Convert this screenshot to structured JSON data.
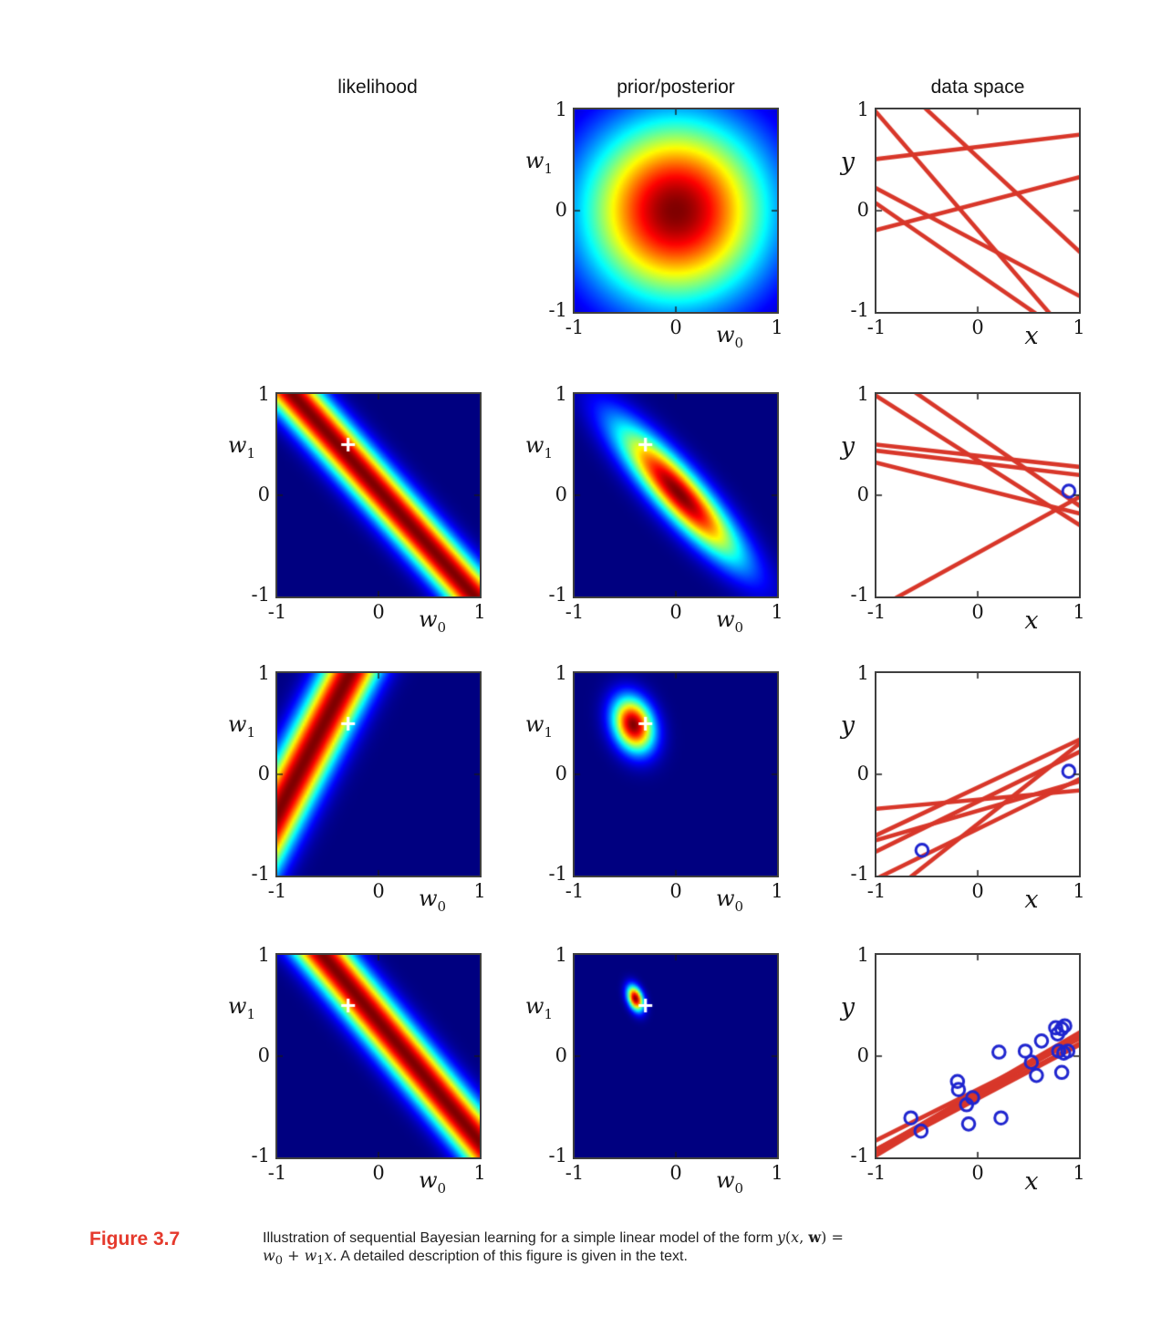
{
  "headers": [
    "likelihood",
    "prior/posterior",
    "data space"
  ],
  "axes": {
    "yticks": [
      "1",
      "0",
      "-1"
    ],
    "xticks": [
      "-1",
      "0",
      "1"
    ],
    "w1_base": "w",
    "w1_sub": "1",
    "w0_base": "w",
    "w0_sub": "0",
    "x_label": "x",
    "y_label": "y"
  },
  "caption": {
    "label": "Figure 3.7",
    "line1": "Illustration of sequential Bayesian learning for a simple linear model of the form ",
    "math_y": "y",
    "math_open": "(",
    "math_x": "x",
    "math_comma": ", ",
    "math_w": "w",
    "math_close": ") =",
    "m2_w": "w",
    "m2_s0": "0",
    "m2_plus": " + ",
    "m2_w2": "w",
    "m2_s1": "1",
    "m2_x": "x",
    "m2_dot": ".",
    "line2": " A detailed description of this figure is given in the text."
  },
  "colors": {
    "sample_line_red": "#d8372a",
    "data_point_blue": "#1f25cf",
    "cross_white": "#ffffff",
    "caption_red": "#e5392c",
    "frame_gray": "#3f3f3f",
    "heat_background_navy": "#000080"
  },
  "chart_data": {
    "type": "heatmap",
    "description_visible": "4x3 grid: likelihood / prior-posterior heatmaps over (w0,w1) and data-space line samples over (x,y)",
    "xlim": [
      -1,
      1
    ],
    "ylim": [
      -1,
      1
    ],
    "true_w": {
      "w0": -0.3,
      "w1": 0.5
    },
    "panels": {
      "r1_post": {
        "type": "gaussian",
        "mean": [
          0,
          0
        ],
        "sigma": [
          0.64,
          0.64
        ],
        "rho": 0,
        "cross": null
      },
      "r1_data": {
        "type": "dataspace",
        "lines": [
          [
            0.63,
            0.12
          ],
          [
            -0.19,
            -1.16
          ],
          [
            0.53,
            -0.93
          ],
          [
            -0.31,
            -0.53
          ],
          [
            -0.62,
            -0.69
          ],
          [
            0.07,
            0.26
          ]
        ],
        "points": []
      },
      "r2_lik": {
        "type": "band",
        "x_obs": 0.9,
        "t_obs": 0.05,
        "sigma_t": 0.2,
        "cross": [
          -0.3,
          0.5
        ]
      },
      "r2_post": {
        "type": "gaussian",
        "mean": [
          0.03,
          0.02
        ],
        "sigma": [
          0.42,
          0.46
        ],
        "rho": -0.88,
        "cross": [
          -0.3,
          0.5
        ]
      },
      "r2_data": {
        "type": "dataspace",
        "lines": [
          [
            0.345,
            -0.635
          ],
          [
            0.59,
            -0.69
          ],
          [
            0.39,
            -0.11
          ],
          [
            0.32,
            -0.12
          ],
          [
            0.07,
            -0.25
          ],
          [
            -0.57,
            0.55
          ]
        ],
        "points": [
          [
            0.9,
            0.04
          ]
        ]
      },
      "r3_lik": {
        "type": "band",
        "x_obs": -0.52,
        "t_obs": -0.8,
        "sigma_t": 0.2,
        "cross": [
          -0.3,
          0.5
        ]
      },
      "r3_post": {
        "type": "gaussian",
        "mean": [
          -0.42,
          0.49
        ],
        "sigma": [
          0.14,
          0.185
        ],
        "rho": -0.22,
        "cross": [
          -0.3,
          0.5
        ]
      },
      "r3_data": {
        "type": "dataspace",
        "lines": [
          [
            -0.25,
            0.09
          ],
          [
            -0.13,
            0.47
          ],
          [
            -0.27,
            0.49
          ],
          [
            -0.49,
            0.79
          ],
          [
            -0.54,
            0.49
          ],
          [
            -0.36,
            0.29
          ]
        ],
        "points": [
          [
            0.9,
            0.03
          ],
          [
            -0.55,
            -0.75
          ]
        ]
      },
      "r4_lik": {
        "type": "band",
        "x_obs": 0.84,
        "t_obs": 0.29,
        "sigma_t": 0.2,
        "cross": [
          -0.3,
          0.5
        ]
      },
      "r4_post": {
        "type": "gaussian",
        "mean": [
          -0.4,
          0.57
        ],
        "sigma": [
          0.055,
          0.085
        ],
        "rho": -0.35,
        "cross": [
          -0.3,
          0.5
        ]
      },
      "r4_data": {
        "type": "dataspace",
        "lines": [
          [
            -0.37,
            0.55
          ],
          [
            -0.4,
            0.52
          ],
          [
            -0.35,
            0.58
          ],
          [
            -0.42,
            0.53
          ],
          [
            -0.38,
            0.6
          ],
          [
            -0.33,
            0.5
          ]
        ],
        "points": [
          [
            -0.66,
            -0.61
          ],
          [
            -0.56,
            -0.74
          ],
          [
            -0.2,
            -0.25
          ],
          [
            -0.19,
            -0.33
          ],
          [
            -0.11,
            -0.48
          ],
          [
            -0.05,
            -0.41
          ],
          [
            -0.09,
            -0.67
          ],
          [
            0.21,
            0.04
          ],
          [
            0.23,
            -0.61
          ],
          [
            0.47,
            0.05
          ],
          [
            0.53,
            -0.06
          ],
          [
            0.58,
            -0.19
          ],
          [
            0.63,
            0.15
          ],
          [
            0.77,
            0.28
          ],
          [
            0.79,
            0.22
          ],
          [
            0.83,
            0.27
          ],
          [
            0.86,
            0.3
          ],
          [
            0.8,
            0.05
          ],
          [
            0.85,
            0.03
          ],
          [
            0.89,
            0.05
          ],
          [
            0.83,
            -0.16
          ]
        ]
      }
    }
  }
}
